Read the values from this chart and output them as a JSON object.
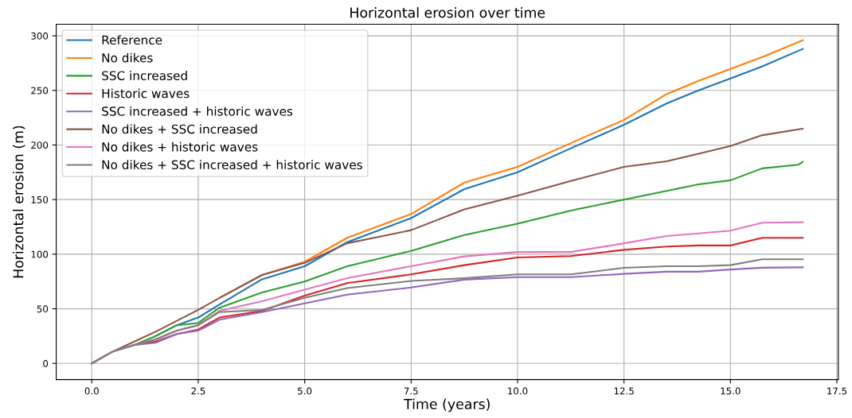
{
  "chart_data": {
    "type": "line",
    "title": "Horizontal erosion over time",
    "xlabel": "Time (years)",
    "ylabel": "Horizontal erosion (m)",
    "x": [
      0,
      0.5,
      1,
      1.5,
      2,
      2.5,
      3,
      4,
      5,
      6,
      7.5,
      8.75,
      10,
      11.25,
      12.5,
      13.5,
      14.25,
      15,
      15.75,
      16.7
    ],
    "series": [
      {
        "name": "Reference",
        "color": "#1f77b4",
        "values": [
          null,
          null,
          null,
          25,
          35,
          42,
          54,
          77,
          89,
          111,
          133,
          159.6,
          175,
          197,
          218.5,
          238,
          250,
          261,
          272,
          288
        ]
      },
      {
        "name": "No dikes",
        "color": "#ff7f0e",
        "values": [
          null,
          null,
          null,
          null,
          null,
          null,
          60,
          81,
          93,
          115,
          136.8,
          165.6,
          180,
          201.7,
          223,
          246.6,
          258.7,
          269.7,
          280.6,
          295.9
        ]
      },
      {
        "name": "SSC increased",
        "color": "#2ca02c",
        "x": [
          0,
          0.5,
          1,
          1.5,
          2,
          2.5,
          3,
          4,
          5,
          6,
          7.5,
          8.75,
          10,
          11.25,
          12.5,
          13.5,
          14.25,
          15,
          15.75,
          16.6,
          16.7
        ],
        "values": [
          0,
          11,
          17,
          25,
          35,
          37,
          51,
          65,
          75,
          89,
          103,
          117.5,
          128,
          140,
          150,
          158,
          164,
          167.7,
          178.6,
          182,
          184.6
        ]
      },
      {
        "name": "Historic waves",
        "color": "#d62728",
        "values": [
          null,
          null,
          17,
          20,
          27,
          31,
          42,
          48,
          62,
          73.5,
          81.5,
          90,
          97,
          98.3,
          104,
          107,
          108,
          108,
          115,
          115
        ]
      },
      {
        "name": "SSC increased + historic waves",
        "color": "#9467bd",
        "values": [
          0,
          11,
          16.7,
          19,
          27,
          30,
          40,
          47,
          55,
          63,
          69.5,
          76.7,
          79,
          79,
          82,
          84,
          84,
          86,
          87.6,
          88
        ]
      },
      {
        "name": "No dikes + SSC increased",
        "color": "#8c564b",
        "values": [
          0,
          11,
          20,
          29,
          39,
          49,
          60,
          81,
          92,
          110,
          122,
          141,
          153.6,
          167,
          180,
          185,
          192,
          199,
          209,
          215
        ]
      },
      {
        "name": "No dikes + historic waves",
        "color": "#e377c2",
        "values": [
          0,
          11,
          17,
          22,
          30,
          35,
          48,
          57,
          67.5,
          78,
          89,
          98,
          102,
          102,
          110,
          116.7,
          119,
          121.6,
          128.8,
          129.3
        ]
      },
      {
        "name": "No dikes + SSC increased + historic waves",
        "color": "#7f7f7f",
        "values": [
          0,
          11,
          17,
          22,
          30,
          35,
          47,
          49,
          60,
          69,
          75.5,
          78,
          81.5,
          81.5,
          87.5,
          89,
          89,
          90,
          95.4,
          95.4
        ]
      }
    ],
    "xlim": [
      -0.835,
      17.535
    ],
    "ylim": [
      -14.8,
      310.6
    ],
    "xticks": [
      {
        "value": 0,
        "label": "0.0"
      },
      {
        "value": 2.5,
        "label": "2.5"
      },
      {
        "value": 5,
        "label": "5.0"
      },
      {
        "value": 7.5,
        "label": "7.5"
      },
      {
        "value": 10,
        "label": "10.0"
      },
      {
        "value": 12.5,
        "label": "12.5"
      },
      {
        "value": 15,
        "label": "15.0"
      },
      {
        "value": 17.5,
        "label": "17.5"
      }
    ],
    "yticks": [
      0,
      50,
      100,
      150,
      200,
      250,
      300
    ],
    "grid": true,
    "legend": "top left",
    "line_style": "solid",
    "marker": "none"
  }
}
